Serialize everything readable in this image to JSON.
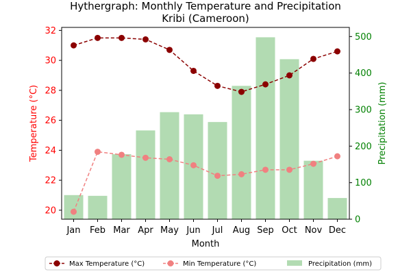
{
  "chart_data": {
    "type": "bar+line",
    "title": "Hythergraph: Monthly Temperature and Precipitation",
    "subtitle": "Kribi (Cameroon)",
    "xlabel": "Month",
    "ylabel_left": "Temperature (°C)",
    "ylabel_right": "Precipitation (mm)",
    "categories": [
      "Jan",
      "Feb",
      "Mar",
      "Apr",
      "May",
      "Jun",
      "Jul",
      "Aug",
      "Sep",
      "Oct",
      "Nov",
      "Dec"
    ],
    "ylim_left": [
      19.4,
      32.2
    ],
    "yticks_left": [
      20,
      22,
      24,
      26,
      28,
      30,
      32
    ],
    "ylim_right": [
      0,
      525
    ],
    "yticks_right": [
      0,
      100,
      200,
      300,
      400,
      500
    ],
    "series": [
      {
        "name": "Max Temperature (°C)",
        "axis": "left",
        "kind": "line",
        "values": [
          31.0,
          31.5,
          31.5,
          31.4,
          30.7,
          29.3,
          28.3,
          27.9,
          28.4,
          29.0,
          30.1,
          30.6
        ]
      },
      {
        "name": "Min Temperature (°C)",
        "axis": "left",
        "kind": "line",
        "values": [
          19.9,
          23.9,
          23.7,
          23.5,
          23.4,
          23.0,
          22.3,
          22.4,
          22.7,
          22.7,
          23.1,
          23.6
        ]
      },
      {
        "name": "Precipitation (mm)",
        "axis": "right",
        "kind": "bar",
        "values": [
          66,
          64,
          178,
          243,
          293,
          287,
          266,
          365,
          498,
          438,
          160,
          58
        ]
      }
    ],
    "colors": {
      "max_temp": "#8b0000",
      "min_temp": "#f08080",
      "precip": "#b2dbb2",
      "left_axis": "#ff0000",
      "right_axis": "#008000"
    },
    "legend_position": "bottom"
  }
}
